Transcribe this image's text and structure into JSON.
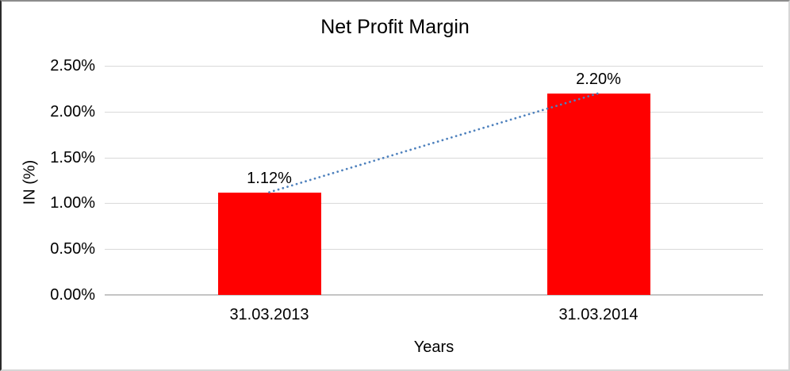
{
  "chart_data": {
    "type": "bar",
    "title": "Net Profit Margin",
    "categories": [
      "31.03.2013",
      "31.03.2014"
    ],
    "values": [
      1.12,
      2.2
    ],
    "data_labels": [
      "1.12%",
      "2.20%"
    ],
    "xlabel": "Years",
    "ylabel": "IN (%)",
    "ylim": [
      0,
      2.5
    ],
    "yticks": [
      {
        "value": 0,
        "label": "0.00%"
      },
      {
        "value": 0.5,
        "label": "0.50%"
      },
      {
        "value": 1,
        "label": "1.00%"
      },
      {
        "value": 1.5,
        "label": "1.50%"
      },
      {
        "value": 2,
        "label": "2.00%"
      },
      {
        "value": 2.5,
        "label": "2.50%"
      }
    ],
    "grid": true,
    "legend": "none",
    "colors": {
      "bar": "#ff0000",
      "trendline": "#4e81bd",
      "gridline": "#d9d9d9",
      "axis_line": "#c4c4c4",
      "text": "#000000",
      "background": "#ffffff"
    },
    "trendline": {
      "style": "dotted",
      "color": "#4e81bd",
      "from": {
        "category_index": 0,
        "value": 1.12
      },
      "to": {
        "category_index": 1,
        "value": 2.2
      }
    }
  }
}
